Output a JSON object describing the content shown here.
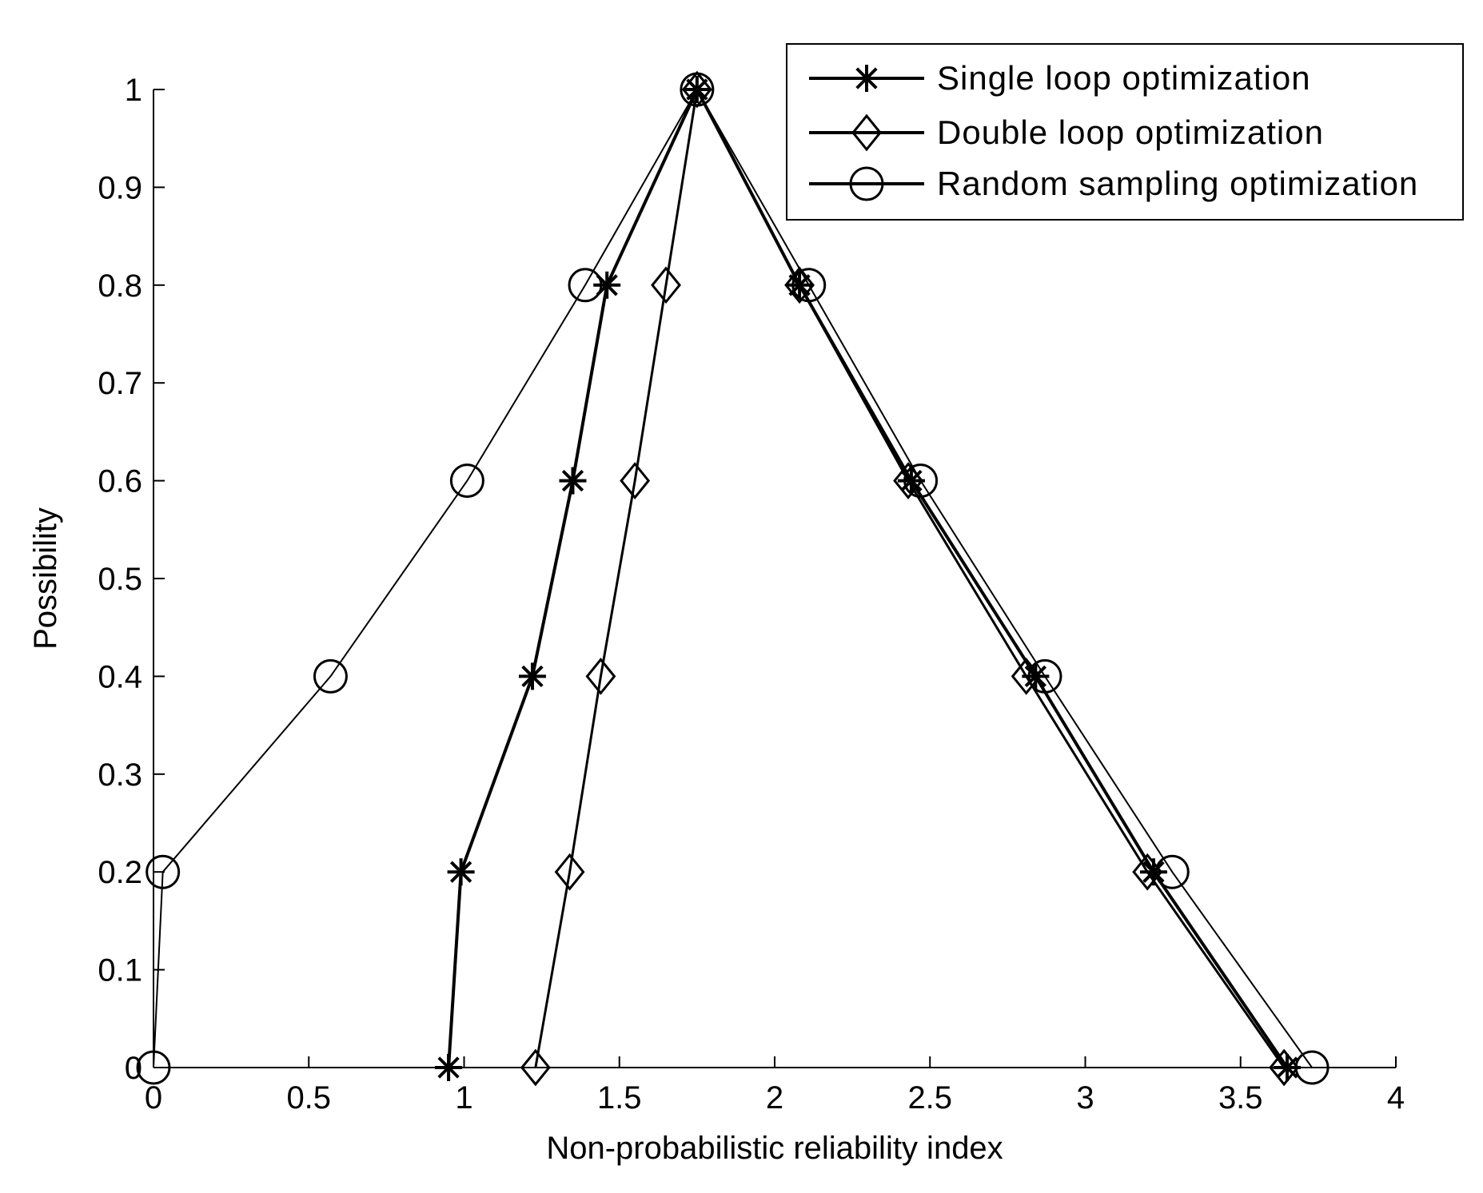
{
  "chart_data": {
    "type": "line",
    "xlabel": "Non-probabilistic reliability index",
    "ylabel": "Possibility",
    "xlim": [
      0,
      4
    ],
    "ylim": [
      0,
      1
    ],
    "x_ticks": [
      0,
      0.5,
      1,
      1.5,
      2,
      2.5,
      3,
      3.5,
      4
    ],
    "x_tick_labels": [
      "0",
      "0.5",
      "1",
      "1.5",
      "2",
      "2.5",
      "3",
      "3.5",
      "4"
    ],
    "y_ticks": [
      0,
      0.1,
      0.2,
      0.3,
      0.4,
      0.5,
      0.6,
      0.7,
      0.8,
      0.9,
      1
    ],
    "y_tick_labels": [
      "0",
      "0.1",
      "0.2",
      "0.3",
      "0.4",
      "0.5",
      "0.6",
      "0.7",
      "0.8",
      "0.9",
      "1"
    ],
    "grid": false,
    "legend_position": "top-right",
    "series": [
      {
        "name": "Single loop optimization",
        "marker": "asterisk",
        "points": [
          [
            0.95,
            0
          ],
          [
            0.99,
            0.2
          ],
          [
            1.22,
            0.4
          ],
          [
            1.35,
            0.6
          ],
          [
            1.46,
            0.8
          ],
          [
            1.75,
            1
          ],
          [
            2.08,
            0.8
          ],
          [
            2.44,
            0.6
          ],
          [
            2.84,
            0.4
          ],
          [
            3.22,
            0.2
          ],
          [
            3.65,
            0
          ]
        ]
      },
      {
        "name": "Double loop optimization",
        "marker": "diamond",
        "points": [
          [
            1.23,
            0
          ],
          [
            1.34,
            0.2
          ],
          [
            1.44,
            0.4
          ],
          [
            1.55,
            0.6
          ],
          [
            1.65,
            0.8
          ],
          [
            1.75,
            1
          ],
          [
            2.08,
            0.8
          ],
          [
            2.43,
            0.6
          ],
          [
            2.81,
            0.4
          ],
          [
            3.2,
            0.2
          ],
          [
            3.64,
            0
          ]
        ]
      },
      {
        "name": "Random sampling optimization",
        "marker": "circle",
        "points": [
          [
            0,
            0
          ],
          [
            0.03,
            0.2
          ],
          [
            0.57,
            0.4
          ],
          [
            1.01,
            0.6
          ],
          [
            1.39,
            0.8
          ],
          [
            1.75,
            1
          ],
          [
            2.11,
            0.8
          ],
          [
            2.47,
            0.6
          ],
          [
            2.87,
            0.4
          ],
          [
            3.28,
            0.2
          ],
          [
            3.73,
            0
          ]
        ]
      }
    ]
  }
}
